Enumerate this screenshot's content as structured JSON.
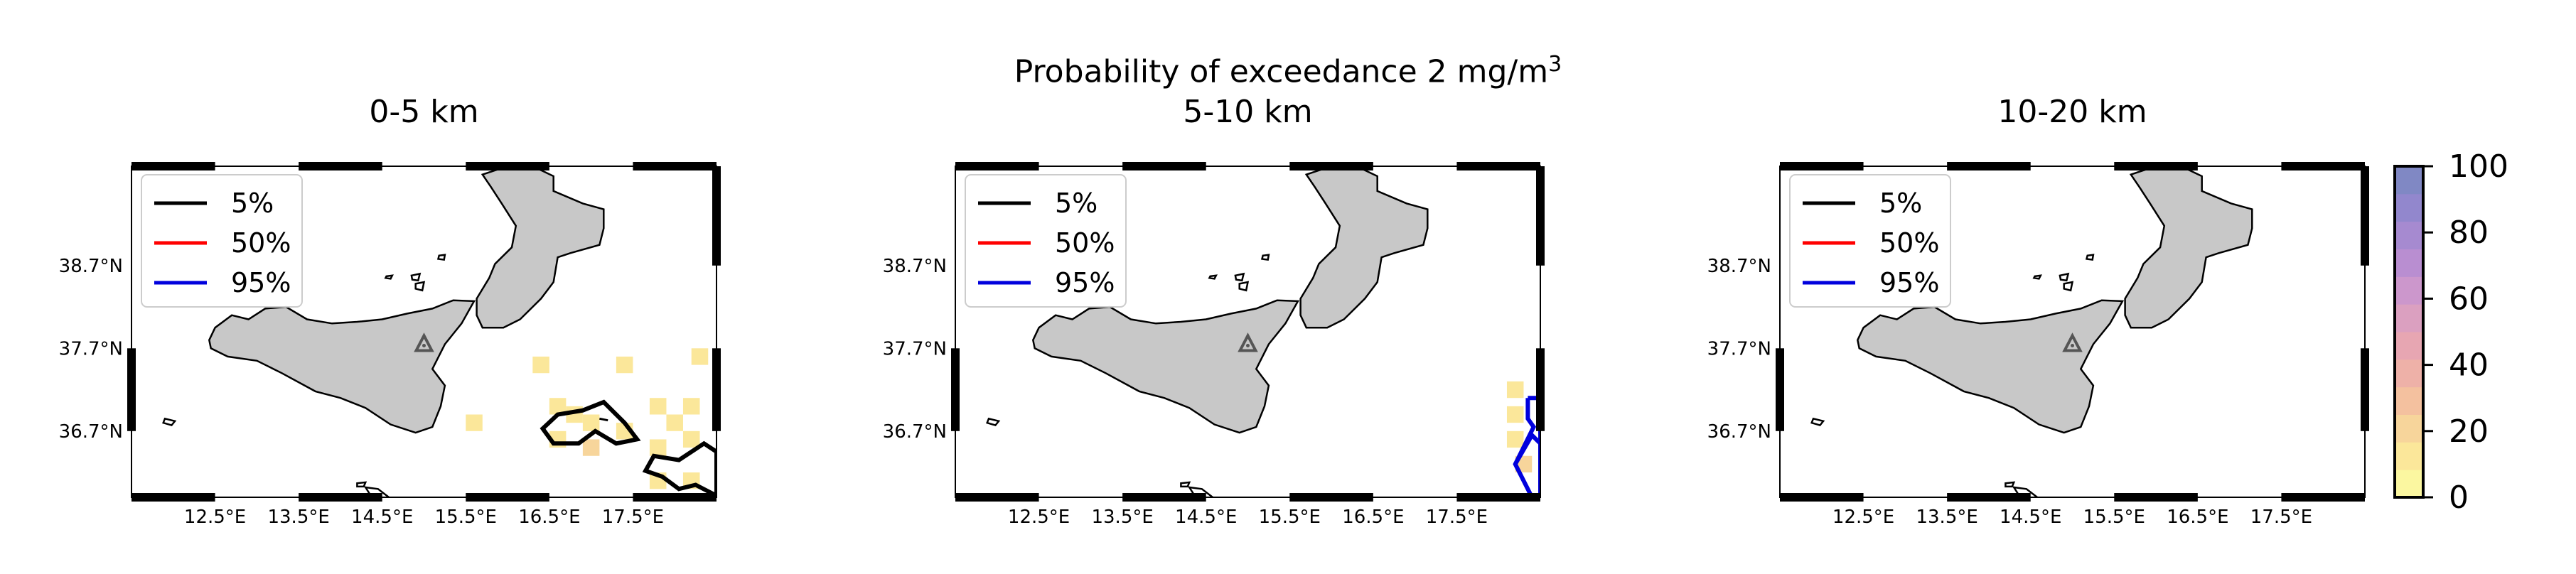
{
  "suptitle": {
    "text": "Probability of exceedance 2 mg/m",
    "sup": "3"
  },
  "chart_data": [
    {
      "type": "heatmap",
      "title": "0-5 km",
      "x_ticks": [
        "12.5°E",
        "13.5°E",
        "14.5°E",
        "15.5°E",
        "16.5°E",
        "17.5°E"
      ],
      "y_ticks": [
        "38.7°N",
        "37.7°N",
        "36.7°N"
      ],
      "legend": [
        "5%",
        "50%",
        "95%"
      ],
      "contour_levels": [
        5,
        50,
        95
      ],
      "contours_present": [
        "5%"
      ],
      "cells": [
        {
          "lon": 16.4,
          "lat": 37.5,
          "p": 10
        },
        {
          "lon": 17.4,
          "lat": 37.5,
          "p": 10
        },
        {
          "lon": 18.3,
          "lat": 37.6,
          "p": 10
        },
        {
          "lon": 15.6,
          "lat": 36.8,
          "p": 10
        },
        {
          "lon": 16.6,
          "lat": 37.0,
          "p": 10
        },
        {
          "lon": 16.8,
          "lat": 36.9,
          "p": 15
        },
        {
          "lon": 17.0,
          "lat": 36.8,
          "p": 15
        },
        {
          "lon": 17.4,
          "lat": 36.7,
          "p": 10
        },
        {
          "lon": 17.8,
          "lat": 37.0,
          "p": 10
        },
        {
          "lon": 18.0,
          "lat": 36.8,
          "p": 10
        },
        {
          "lon": 18.2,
          "lat": 37.0,
          "p": 10
        },
        {
          "lon": 16.6,
          "lat": 36.6,
          "p": 15
        },
        {
          "lon": 17.0,
          "lat": 36.5,
          "p": 20
        },
        {
          "lon": 17.8,
          "lat": 36.5,
          "p": 10
        },
        {
          "lon": 18.2,
          "lat": 36.6,
          "p": 10
        },
        {
          "lon": 17.8,
          "lat": 36.1,
          "p": 15
        },
        {
          "lon": 18.2,
          "lat": 36.1,
          "p": 15
        }
      ]
    },
    {
      "type": "heatmap",
      "title": "5-10 km",
      "x_ticks": [
        "12.5°E",
        "13.5°E",
        "14.5°E",
        "15.5°E",
        "16.5°E",
        "17.5°E"
      ],
      "y_ticks": [
        "38.7°N",
        "37.7°N",
        "36.7°N"
      ],
      "legend": [
        "5%",
        "50%",
        "95%"
      ],
      "contour_levels": [
        5,
        50,
        95
      ],
      "contours_present": [
        "95%"
      ],
      "cells": [
        {
          "lon": 18.2,
          "lat": 37.2,
          "p": 15
        },
        {
          "lon": 18.2,
          "lat": 36.9,
          "p": 15
        },
        {
          "lon": 18.2,
          "lat": 36.6,
          "p": 10
        },
        {
          "lon": 18.3,
          "lat": 36.3,
          "p": 20
        }
      ]
    },
    {
      "type": "heatmap",
      "title": "10-20 km",
      "x_ticks": [
        "12.5°E",
        "13.5°E",
        "14.5°E",
        "15.5°E",
        "16.5°E",
        "17.5°E"
      ],
      "y_ticks": [
        "38.7°N",
        "37.7°N",
        "36.7°N"
      ],
      "legend": [
        "5%",
        "50%",
        "95%"
      ],
      "contour_levels": [
        5,
        50,
        95
      ],
      "contours_present": [],
      "cells": []
    }
  ],
  "colorbar": {
    "ticks": [
      "0",
      "20",
      "40",
      "60",
      "80",
      "100"
    ],
    "range": [
      0,
      100
    ],
    "colors": [
      "#fbf7a0",
      "#fbe79a",
      "#f7d59b",
      "#f4c19f",
      "#eeb1a8",
      "#e7a6b2",
      "#dba0c0",
      "#cc97cc",
      "#b98ed1",
      "#a68ad0",
      "#9287cd",
      "#8088c4"
    ]
  },
  "colors": {
    "land": "#c8c8c8",
    "contour_5": "#000000",
    "contour_50": "#ff0000",
    "contour_95": "#0000dd",
    "volcano": "#555555"
  }
}
